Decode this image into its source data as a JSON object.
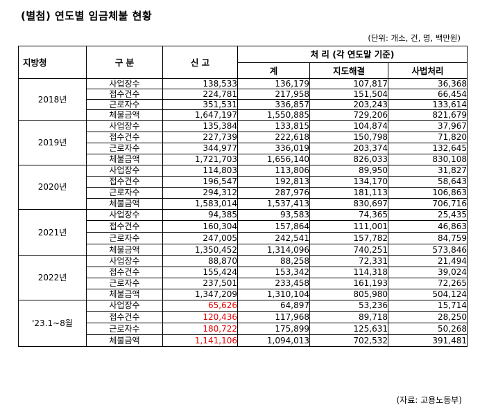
{
  "title": "(별첨) 연도별 임금체불 현황",
  "unit": "(단위: 개소, 건, 명, 백만원)",
  "source": "(자료: 고용노동부)",
  "headers": {
    "region": "지방청",
    "category": "구 분",
    "report": "신 고",
    "processing": "처 리 (각 연도말 기준)",
    "total": "계",
    "guidance": "지도해결",
    "judicial": "사법처리"
  },
  "highlight_color": "#e60000",
  "groups": [
    {
      "year": "2018년",
      "rows": [
        {
          "category": "사업장수",
          "report": "138,533",
          "total": "136,179",
          "guidance": "107,817",
          "judicial": "36,368"
        },
        {
          "category": "접수건수",
          "report": "224,781",
          "total": "217,958",
          "guidance": "151,504",
          "judicial": "66,454"
        },
        {
          "category": "근로자수",
          "report": "351,531",
          "total": "336,857",
          "guidance": "203,243",
          "judicial": "133,614"
        },
        {
          "category": "체불금액",
          "report": "1,647,197",
          "total": "1,550,885",
          "guidance": "729,206",
          "judicial": "821,679"
        }
      ]
    },
    {
      "year": "2019년",
      "rows": [
        {
          "category": "사업장수",
          "report": "135,384",
          "total": "133,815",
          "guidance": "104,874",
          "judicial": "37,967"
        },
        {
          "category": "접수건수",
          "report": "227,739",
          "total": "222,618",
          "guidance": "150,798",
          "judicial": "71,820"
        },
        {
          "category": "근로자수",
          "report": "344,977",
          "total": "336,019",
          "guidance": "203,374",
          "judicial": "132,645"
        },
        {
          "category": "체불금액",
          "report": "1,721,703",
          "total": "1,656,140",
          "guidance": "826,033",
          "judicial": "830,108"
        }
      ]
    },
    {
      "year": "2020년",
      "rows": [
        {
          "category": "사업장수",
          "report": "114,803",
          "total": "113,806",
          "guidance": "89,950",
          "judicial": "31,827"
        },
        {
          "category": "접수건수",
          "report": "196,547",
          "total": "192,813",
          "guidance": "134,170",
          "judicial": "58,643"
        },
        {
          "category": "근로자수",
          "report": "294,312",
          "total": "287,976",
          "guidance": "181,113",
          "judicial": "106,863"
        },
        {
          "category": "체불금액",
          "report": "1,583,014",
          "total": "1,537,413",
          "guidance": "830,697",
          "judicial": "706,716"
        }
      ]
    },
    {
      "year": "2021년",
      "rows": [
        {
          "category": "사업장수",
          "report": "94,385",
          "total": "93,583",
          "guidance": "74,365",
          "judicial": "25,435"
        },
        {
          "category": "접수건수",
          "report": "160,304",
          "total": "157,864",
          "guidance": "111,001",
          "judicial": "46,863"
        },
        {
          "category": "근로자수",
          "report": "247,005",
          "total": "242,541",
          "guidance": "157,782",
          "judicial": "84,759"
        },
        {
          "category": "체불금액",
          "report": "1,350,452",
          "total": "1,314,096",
          "guidance": "740,251",
          "judicial": "573,846"
        }
      ]
    },
    {
      "year": "2022년",
      "rows": [
        {
          "category": "사업장수",
          "report": "88,870",
          "total": "88,258",
          "guidance": "72,331",
          "judicial": "21,494"
        },
        {
          "category": "접수건수",
          "report": "155,424",
          "total": "153,342",
          "guidance": "114,318",
          "judicial": "39,024"
        },
        {
          "category": "근로자수",
          "report": "237,501",
          "total": "233,458",
          "guidance": "161,193",
          "judicial": "72,265"
        },
        {
          "category": "체불금액",
          "report": "1,347,209",
          "total": "1,310,104",
          "guidance": "805,980",
          "judicial": "504,124"
        }
      ]
    },
    {
      "year": "'23.1~8월",
      "highlight_report": true,
      "rows": [
        {
          "category": "사업장수",
          "report": "65,626",
          "total": "64,897",
          "guidance": "53,236",
          "judicial": "15,714"
        },
        {
          "category": "접수건수",
          "report": "120,436",
          "total": "117,968",
          "guidance": "89,718",
          "judicial": "28,250"
        },
        {
          "category": "근로자수",
          "report": "180,722",
          "total": "175,899",
          "guidance": "125,631",
          "judicial": "50,268"
        },
        {
          "category": "체불금액",
          "report": "1,141,106",
          "total": "1,094,013",
          "guidance": "702,532",
          "judicial": "391,481"
        }
      ]
    }
  ]
}
